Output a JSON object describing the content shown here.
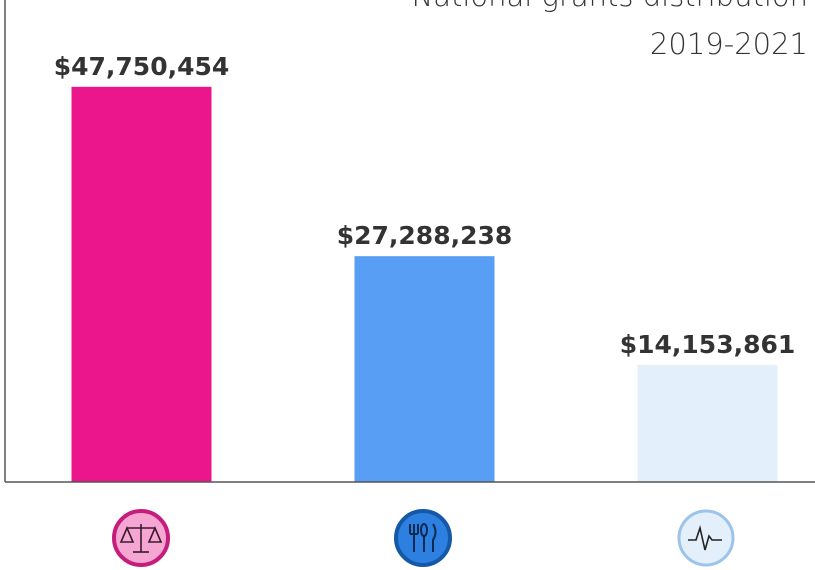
{
  "chart_data": {
    "type": "bar",
    "title": "National grants distribution",
    "subtitle": "2019-2021",
    "categories": [
      null,
      null,
      null
    ],
    "values": [
      47750454,
      27288238,
      14153861
    ],
    "value_labels": [
      "$47,750,454",
      "$27,288,238",
      "$14,153,861"
    ],
    "colors": [
      "#ec168c",
      "#589ef4",
      "#e3f0fb"
    ],
    "ylim": [
      0,
      58000000
    ]
  }
}
